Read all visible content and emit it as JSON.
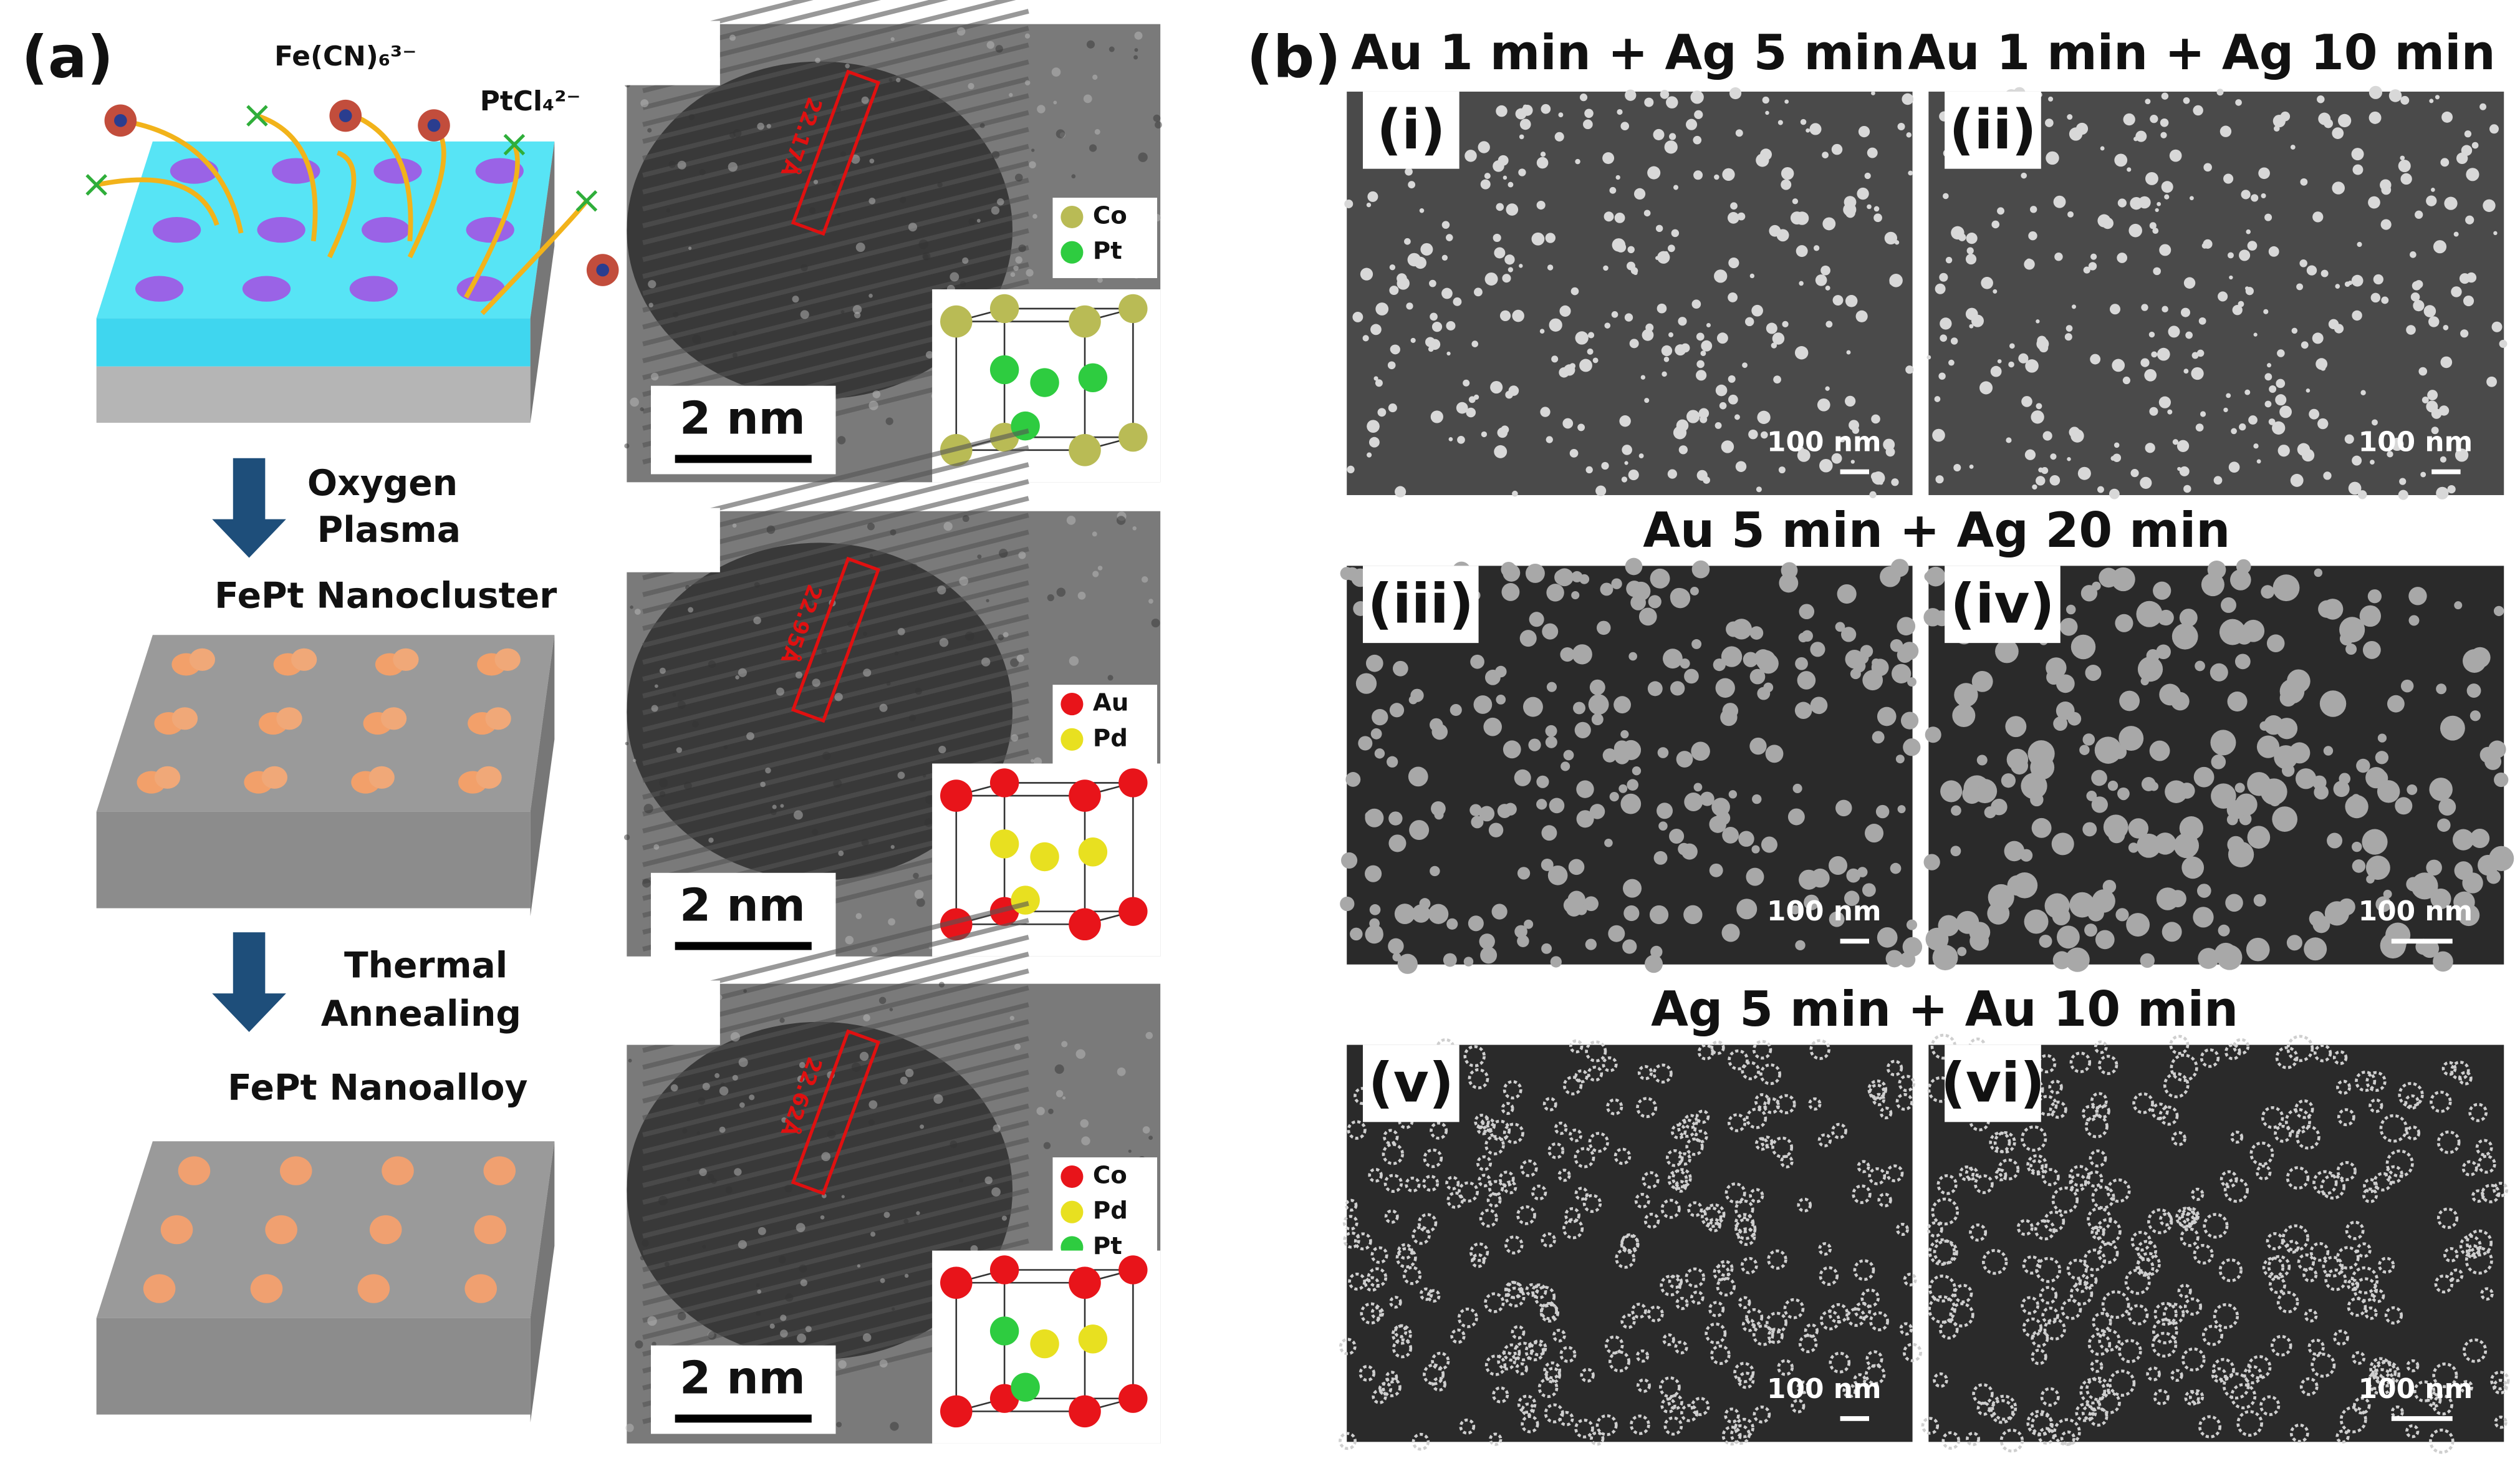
{
  "panel_a": {
    "label": "(a)",
    "schematic": {
      "ions": [
        "Fe(CN)₆³⁻",
        "PtCl₄²⁻"
      ],
      "steps": [
        {
          "process": [
            "Oxygen",
            "Plasma"
          ],
          "product": "FePt Nanocluster"
        },
        {
          "process": [
            "Thermal",
            "Annealing"
          ],
          "product": "FePt Nanoalloy"
        }
      ]
    },
    "tem_images": [
      {
        "lattice_label": "22.17Å",
        "scale_bar": "2 nm",
        "legend": [
          {
            "element": "Co",
            "color": "#b9bb55"
          },
          {
            "element": "Pt",
            "color": "#2ecc40"
          }
        ]
      },
      {
        "lattice_label": "22.95Å",
        "scale_bar": "2 nm",
        "legend": [
          {
            "element": "Au",
            "color": "#e8141a"
          },
          {
            "element": "Pd",
            "color": "#e8e020"
          }
        ]
      },
      {
        "lattice_label": "22.62Å",
        "scale_bar": "2 nm",
        "legend": [
          {
            "element": "Co",
            "color": "#e8141a"
          },
          {
            "element": "Pd",
            "color": "#e8e020"
          },
          {
            "element": "Pt",
            "color": "#2ecc40"
          }
        ]
      }
    ]
  },
  "panel_b": {
    "label": "(b)",
    "titles": [
      "Au 1 min + Ag 5 min",
      "Au 1 min + Ag 10 min",
      "Au 5 min + Ag 20 min",
      "Ag 5 min + Au 10 min"
    ],
    "images": [
      {
        "label": "(i)",
        "scale_bar": "100 nm"
      },
      {
        "label": "(ii)",
        "scale_bar": "100 nm"
      },
      {
        "label": "(iii)",
        "scale_bar": "100 nm"
      },
      {
        "label": "(iv)",
        "scale_bar": "100 nm"
      },
      {
        "label": "(v)",
        "scale_bar": "100 nm"
      },
      {
        "label": "(vi)",
        "scale_bar": "100 nm"
      }
    ]
  }
}
